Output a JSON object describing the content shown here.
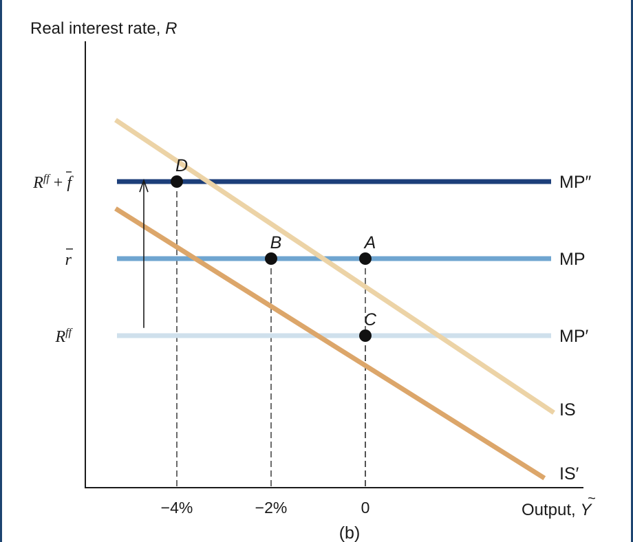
{
  "chart_data": {
    "type": "line",
    "panel_label": "(b)",
    "ylabel": {
      "text": "Real interest rate, ",
      "var": "R"
    },
    "xlabel": {
      "text": "Output, ",
      "var": "Y",
      "accent": "~"
    },
    "x_ticks": [
      {
        "value": -4,
        "label": "−4%"
      },
      {
        "value": -2,
        "label": "−2%"
      },
      {
        "value": 0,
        "label": "0"
      }
    ],
    "y_ticks": [
      {
        "level": "R_ff_plus_fbar",
        "value": 2,
        "base": "R",
        "sup": "ff",
        "extra": " + ",
        "extra_var": "f",
        "extra_bar": true
      },
      {
        "level": "r_bar",
        "value": 1,
        "base": "r",
        "bar": true
      },
      {
        "level": "R_ff",
        "value": 0,
        "base": "R",
        "sup": "ff"
      }
    ],
    "mp_curves": [
      {
        "name": "MP″",
        "level": 2,
        "color": "#1d3f7a"
      },
      {
        "name": "MP",
        "level": 1,
        "color": "#6fa5d0"
      },
      {
        "name": "MP′",
        "level": 0,
        "color": "#cfe0ec"
      }
    ],
    "is_curves": [
      {
        "name": "IS",
        "color": "#ecd3a6",
        "points": [
          [
            -5.3,
            2.8
          ],
          [
            4,
            -1
          ]
        ]
      },
      {
        "name": "IS′",
        "color": "#dca66a",
        "points": [
          [
            -5.3,
            1.65
          ],
          [
            3.8,
            -1.85
          ]
        ]
      }
    ],
    "points": [
      {
        "label": "A",
        "x": 0,
        "y": 1
      },
      {
        "label": "B",
        "x": -2,
        "y": 1
      },
      {
        "label": "C",
        "x": 0,
        "y": 0
      },
      {
        "label": "D",
        "x": -4,
        "y": 2
      }
    ],
    "arrow": {
      "from": 0.1,
      "to": 1.9,
      "direction": "up"
    },
    "axis_color": "#1a1a1a",
    "frame_color": "#1d4470"
  }
}
